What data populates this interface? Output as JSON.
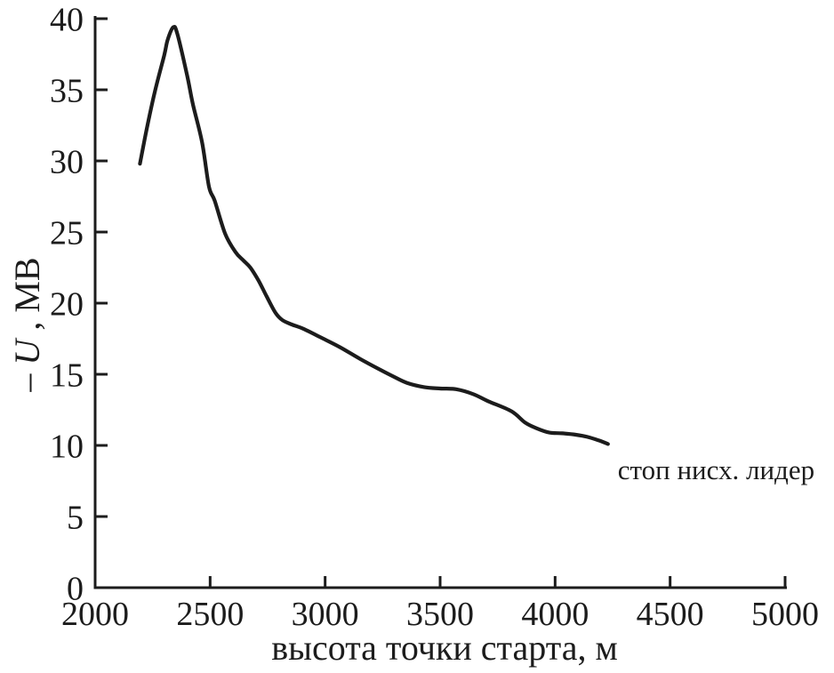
{
  "figure": {
    "background": "#ffffff",
    "ink_color": "#1c1c1c"
  },
  "chart_data": {
    "type": "line",
    "title": "",
    "xlabel": "высота точки старта, м",
    "ylabel": "–U, МВ",
    "ylabel_parts": {
      "sign": "–",
      "variable": "U",
      "unit": ", МВ"
    },
    "xlim": [
      2000,
      5000
    ],
    "ylim": [
      0,
      40
    ],
    "x_ticks": [
      2000,
      2500,
      3000,
      3500,
      4000,
      4500,
      5000
    ],
    "y_ticks": [
      0,
      5,
      10,
      15,
      20,
      25,
      30,
      35,
      40
    ],
    "grid": false,
    "legend": null,
    "line_color": "#1c1c1c",
    "series": [
      {
        "x": [
          2195,
          2225,
          2260,
          2300,
          2315,
          2340,
          2358,
          2400,
          2425,
          2465,
          2495,
          2520,
          2565,
          2610,
          2645,
          2675,
          2710,
          2745,
          2785,
          2815,
          2855,
          2905,
          2980,
          3065,
          3150,
          3230,
          3290,
          3355,
          3430,
          3500,
          3570,
          3645,
          3710,
          3810,
          3870,
          3920,
          3975,
          4030,
          4090,
          4140,
          4190,
          4230
        ],
        "y": [
          29.8,
          32.3,
          34.9,
          37.4,
          38.5,
          39.4,
          38.9,
          36.0,
          34.0,
          31.3,
          28.2,
          27.2,
          24.9,
          23.6,
          23.0,
          22.5,
          21.6,
          20.5,
          19.3,
          18.8,
          18.5,
          18.2,
          17.6,
          16.9,
          16.1,
          15.4,
          14.9,
          14.4,
          14.1,
          14.0,
          13.95,
          13.6,
          13.1,
          12.4,
          11.6,
          11.2,
          10.9,
          10.85,
          10.75,
          10.6,
          10.35,
          10.1
        ]
      }
    ],
    "annotation": {
      "text": "стоп нисх. лидер",
      "x": 4700,
      "y": 8.3
    }
  }
}
